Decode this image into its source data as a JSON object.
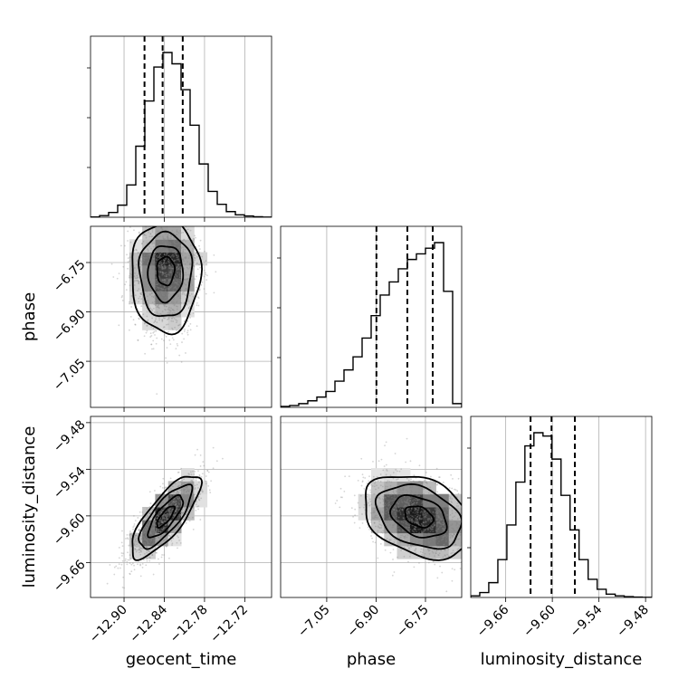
{
  "chart_data": {
    "type": "corner",
    "parameters": [
      "geocent_time",
      "phase",
      "luminosity_distance"
    ],
    "axes": {
      "geocent_time": {
        "range": [
          -12.95,
          -12.68
        ],
        "ticks": [
          -12.9,
          -12.84,
          -12.78,
          -12.72
        ],
        "tick_labels": [
          "−12.90",
          "−12.84",
          "−12.78",
          "−12.72"
        ]
      },
      "phase": {
        "range": [
          -7.19,
          -6.64
        ],
        "ticks": [
          -7.05,
          -6.9,
          -6.75
        ],
        "tick_labels": [
          "−7.05",
          "−6.90",
          "−6.75"
        ]
      },
      "luminosity_distance": {
        "range": [
          -9.705,
          -9.472
        ],
        "ticks": [
          -9.66,
          -9.6,
          -9.54,
          -9.48
        ],
        "tick_labels": [
          "−9.66",
          "−9.60",
          "−9.54",
          "−9.48"
        ]
      }
    },
    "histograms": {
      "geocent_time": {
        "bin_edges": [
          -12.95,
          -12.9365,
          -12.923,
          -12.9095,
          -12.896,
          -12.8825,
          -12.869,
          -12.8555,
          -12.842,
          -12.8285,
          -12.815,
          -12.8015,
          -12.788,
          -12.7745,
          -12.761,
          -12.7475,
          -12.734,
          -12.7205,
          -12.707,
          -12.6935,
          -12.68
        ],
        "counts": [
          0.2,
          1.0,
          3.0,
          7.5,
          20,
          44,
          72,
          93,
          102,
          95,
          79,
          57,
          33,
          16,
          8,
          3.5,
          1.5,
          0.8,
          0.3,
          0.1
        ],
        "quantiles": [
          -12.8695,
          -12.8425,
          -12.8125
        ]
      },
      "phase": {
        "bin_edges": [
          -7.19,
          -7.1625,
          -7.135,
          -7.1075,
          -7.08,
          -7.0525,
          -7.025,
          -6.9975,
          -6.97,
          -6.9425,
          -6.915,
          -6.8875,
          -6.86,
          -6.8325,
          -6.805,
          -6.7775,
          -6.75,
          -6.7225,
          -6.695,
          -6.6675,
          -6.64
        ],
        "counts": [
          0.5,
          1.0,
          2.0,
          3.5,
          5.5,
          8.5,
          14,
          20,
          27,
          37,
          49,
          60,
          67,
          74,
          79,
          82,
          85,
          88,
          62,
          2
        ],
        "quantiles": [
          -6.899,
          -6.805,
          -6.728
        ]
      },
      "luminosity_distance": {
        "bin_edges": [
          -9.705,
          -9.6934,
          -9.6818,
          -9.6701,
          -9.6585,
          -9.6469,
          -9.6353,
          -9.6237,
          -9.612,
          -9.6004,
          -9.5888,
          -9.5772,
          -9.5656,
          -9.5539,
          -9.5423,
          -9.5307,
          -9.5191,
          -9.5075,
          -9.4958,
          -9.4842,
          -9.4726
        ],
        "counts": [
          1,
          3,
          9,
          23,
          44,
          70,
          92,
          100,
          98,
          84,
          62,
          41,
          23,
          11,
          5,
          2,
          1,
          0.5,
          0.2,
          0.1
        ],
        "quantiles": [
          -9.628,
          -9.601,
          -9.571
        ]
      }
    },
    "pairs": [
      {
        "x": "geocent_time",
        "y": "phase",
        "center": [
          -12.838,
          -6.77
        ],
        "sigma": [
          0.026,
          0.085
        ],
        "rho": 0.0,
        "skew_y": -0.6
      },
      {
        "x": "geocent_time",
        "y": "luminosity_distance",
        "center": [
          -12.838,
          -9.601
        ],
        "sigma": [
          0.026,
          0.027
        ],
        "rho": 0.78,
        "skew_y": 0.0
      },
      {
        "x": "phase",
        "y": "luminosity_distance",
        "center": [
          -6.77,
          -9.601
        ],
        "sigma": [
          0.085,
          0.027
        ],
        "rho": -0.32,
        "skew_y": 0.0
      }
    ],
    "contour_levels": [
      0.12,
      0.39,
      0.68,
      0.86
    ]
  }
}
